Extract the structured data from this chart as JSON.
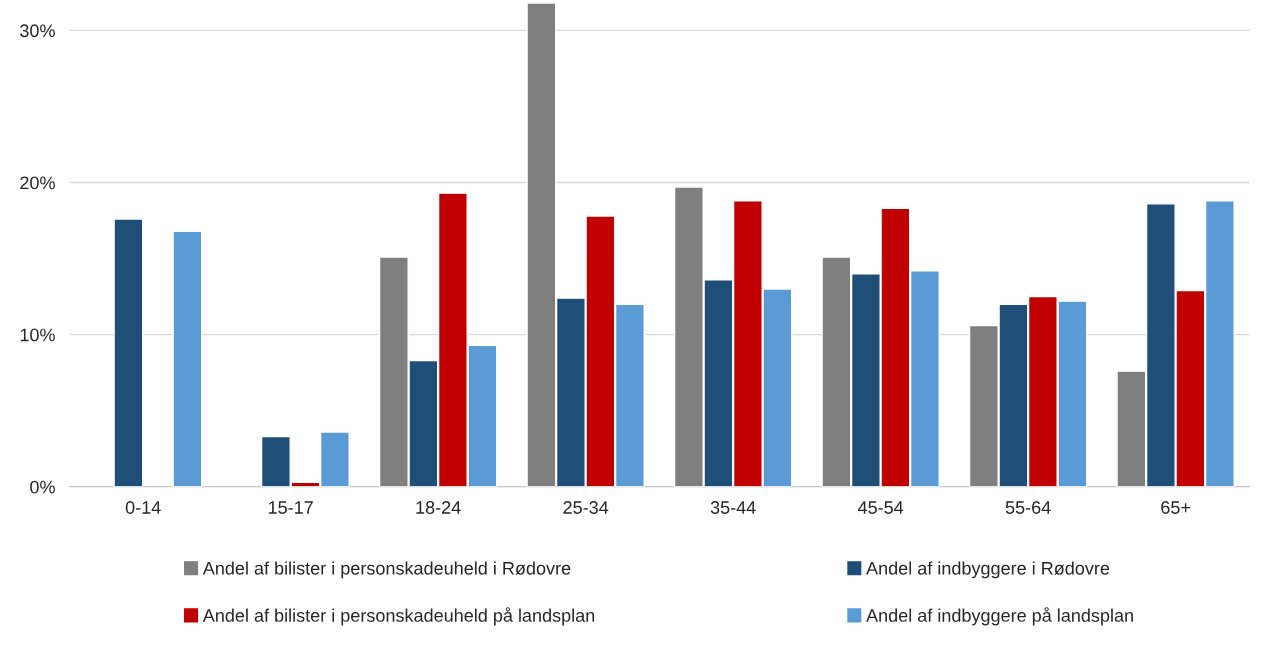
{
  "chart_data": {
    "type": "bar",
    "categories": [
      "0-14",
      "15-17",
      "18-24",
      "25-34",
      "35-44",
      "45-54",
      "55-64",
      "65+"
    ],
    "series": [
      {
        "name": "Andel af bilister i personskadeuheld i Rødovre",
        "color": "#7f7f7f",
        "values": [
          null,
          null,
          15.1,
          31.8,
          19.7,
          15.1,
          10.6,
          7.6
        ]
      },
      {
        "name": "Andel af indbyggere i Rødovre",
        "color": "#1f4e79",
        "values": [
          17.6,
          3.3,
          8.3,
          12.4,
          13.6,
          14.0,
          12.0,
          18.6
        ]
      },
      {
        "name": "Andel af bilister i personskadeuheld på landsplan",
        "color": "#c00000",
        "values": [
          null,
          0.3,
          19.3,
          17.8,
          18.8,
          18.3,
          12.5,
          12.9
        ]
      },
      {
        "name": "Andel af indbyggere på landsplan",
        "color": "#5b9bd5",
        "values": [
          16.8,
          3.6,
          9.3,
          12.0,
          13.0,
          14.2,
          12.2,
          18.8
        ]
      }
    ],
    "ylim": [
      0,
      32
    ],
    "yticks": [
      {
        "value": 0,
        "label": "0%"
      },
      {
        "value": 10,
        "label": "10%"
      },
      {
        "value": 20,
        "label": "20%"
      },
      {
        "value": 30,
        "label": "30%"
      }
    ],
    "grid": "y",
    "legend": "bottom"
  }
}
